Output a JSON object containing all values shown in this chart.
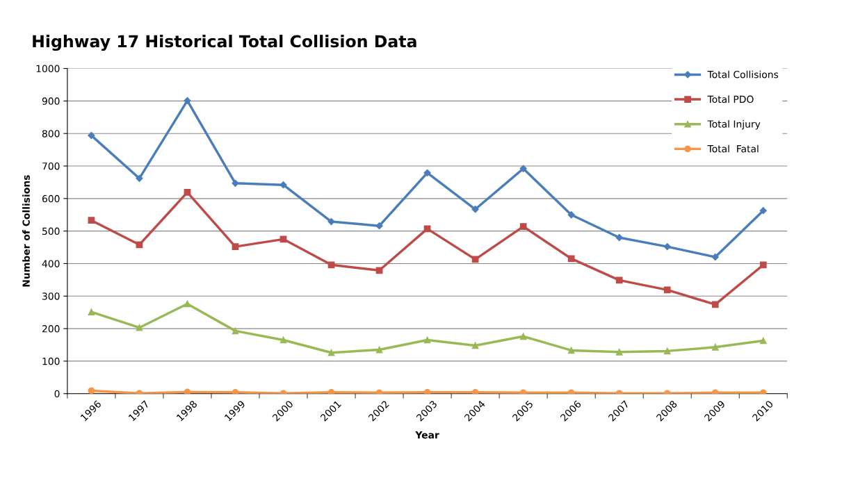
{
  "chart_data": {
    "type": "line",
    "title": "Highway 17 Historical Total Collision Data",
    "xlabel": "Year",
    "ylabel": "Number of Collisions",
    "categories": [
      "1996",
      "1997",
      "1998",
      "1999",
      "2000",
      "2001",
      "2002",
      "2003",
      "2004",
      "2005",
      "2006",
      "2007",
      "2008",
      "2009",
      "2010"
    ],
    "series": [
      {
        "name": "Total Collisions",
        "color": "#4a7ebb",
        "marker": "diamond",
        "values": [
          794,
          662,
          901,
          647,
          642,
          529,
          516,
          679,
          567,
          692,
          550,
          480,
          452,
          420,
          563
        ]
      },
      {
        "name": "Total PDO",
        "color": "#be4b48",
        "marker": "square",
        "values": [
          533,
          458,
          619,
          452,
          475,
          396,
          379,
          507,
          413,
          514,
          415,
          349,
          319,
          274,
          396
        ]
      },
      {
        "name": "Total Injury",
        "color": "#98b954",
        "marker": "triangle",
        "values": [
          251,
          203,
          276,
          193,
          165,
          126,
          135,
          165,
          148,
          176,
          133,
          128,
          131,
          143,
          163
        ]
      },
      {
        "name": "Total  Fatal",
        "color": "#f79646",
        "marker": "circle",
        "values": [
          9,
          1,
          5,
          4,
          1,
          4,
          3,
          4,
          4,
          3,
          3,
          1,
          1,
          3,
          3
        ]
      }
    ],
    "ylim": [
      0,
      1000
    ],
    "yticks": [
      0,
      100,
      200,
      300,
      400,
      500,
      600,
      700,
      800,
      900,
      1000
    ],
    "grid": "y",
    "legend": "top right",
    "line_style": "solid"
  }
}
